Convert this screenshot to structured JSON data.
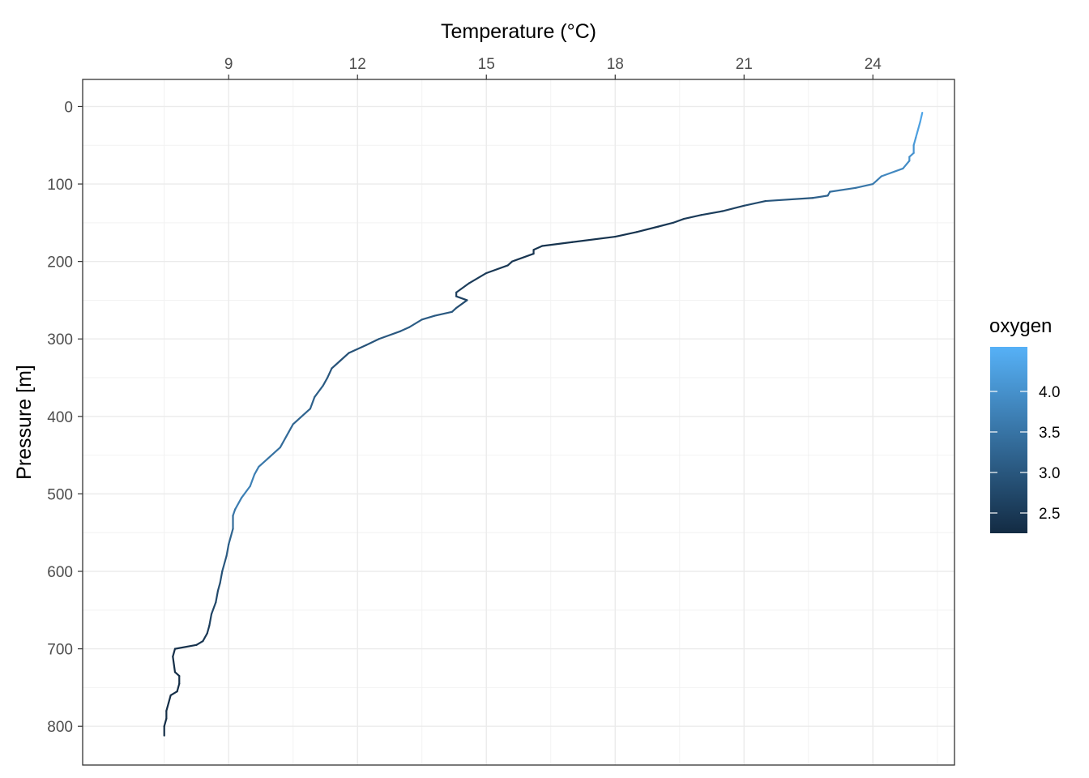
{
  "chart_data": {
    "type": "line",
    "title": "",
    "xlabel": "Temperature (°C)",
    "ylabel": "Pressure [m]",
    "x_axis_position": "top",
    "y_axis_reversed": true,
    "xlim": [
      5.6,
      25.9
    ],
    "ylim": [
      850,
      -35
    ],
    "x_ticks": [
      9,
      12,
      15,
      18,
      21,
      24
    ],
    "x_tick_labels": [
      "9",
      "12",
      "15",
      "18",
      "21",
      "24"
    ],
    "y_ticks": [
      0,
      100,
      200,
      300,
      400,
      500,
      600,
      700,
      800
    ],
    "y_tick_labels": [
      "0",
      "100",
      "200",
      "300",
      "400",
      "500",
      "600",
      "700",
      "800"
    ],
    "grid": true,
    "legend": {
      "title": "oxygen",
      "type": "colorbar",
      "position": "right",
      "range": [
        2.25,
        4.55
      ],
      "breaks": [
        2.5,
        3.0,
        3.5,
        4.0
      ],
      "labels": [
        "2.5",
        "3.0",
        "3.5",
        "4.0"
      ],
      "color_low": "#132b43",
      "color_high": "#56b1f7"
    },
    "series": [
      {
        "x": [
          25.15,
          25.1,
          25.0,
          24.95,
          24.95,
          24.85,
          24.85,
          24.7,
          24.2,
          24.1,
          24.0,
          23.6,
          23.0,
          22.95,
          22.6,
          21.5,
          21.0,
          20.5,
          20.0,
          19.6,
          19.35,
          19.0,
          18.5,
          18.0,
          17.0,
          16.3,
          16.1,
          16.1,
          15.6,
          15.5,
          15.0,
          14.6,
          14.3,
          14.3,
          14.55,
          14.3,
          14.2,
          13.8,
          13.5,
          13.2,
          13.0,
          12.5,
          12.2,
          11.8,
          11.6,
          11.4,
          11.3,
          11.2,
          11.0,
          10.9,
          10.5,
          10.4,
          10.2,
          9.9,
          9.7,
          9.6,
          9.5,
          9.3,
          9.15,
          9.1,
          9.1,
          9.0,
          8.95,
          8.85,
          8.8,
          8.75,
          8.7,
          8.6,
          8.55,
          8.5,
          8.4,
          8.25,
          7.75,
          7.7,
          7.75,
          7.85,
          7.85,
          7.8,
          7.65,
          7.6,
          7.55,
          7.55,
          7.5,
          7.5
        ],
        "y": [
          8,
          20,
          40,
          50,
          60,
          65,
          70,
          80,
          90,
          95,
          100,
          105,
          110,
          115,
          118,
          122,
          128,
          135,
          140,
          145,
          150,
          155,
          162,
          168,
          175,
          180,
          185,
          190,
          200,
          205,
          215,
          228,
          240,
          245,
          250,
          260,
          265,
          270,
          275,
          285,
          290,
          300,
          308,
          318,
          328,
          338,
          350,
          360,
          375,
          390,
          410,
          420,
          440,
          455,
          465,
          475,
          490,
          505,
          520,
          528,
          545,
          565,
          580,
          600,
          615,
          625,
          640,
          655,
          670,
          680,
          690,
          695,
          700,
          710,
          730,
          735,
          745,
          755,
          760,
          770,
          780,
          790,
          800,
          812
        ],
        "colors": [
          4.4,
          4.3,
          4.2,
          4.1,
          4.05,
          4.0,
          3.95,
          3.9,
          3.8,
          3.7,
          3.6,
          3.5,
          3.4,
          3.3,
          3.1,
          2.9,
          2.7,
          2.6,
          2.55,
          2.5,
          2.5,
          2.45,
          2.4,
          2.4,
          2.4,
          2.4,
          2.4,
          2.4,
          2.45,
          2.45,
          2.5,
          2.55,
          2.6,
          2.6,
          2.7,
          2.9,
          3.0,
          3.05,
          3.1,
          3.1,
          3.05,
          3.0,
          2.95,
          2.9,
          2.9,
          2.95,
          3.0,
          3.1,
          3.15,
          3.2,
          3.25,
          3.3,
          3.4,
          3.5,
          3.6,
          3.7,
          3.75,
          3.7,
          3.6,
          3.45,
          3.3,
          3.15,
          3.05,
          2.95,
          2.85,
          2.8,
          2.75,
          2.7,
          2.6,
          2.5,
          2.45,
          2.4,
          2.35,
          2.3,
          2.3,
          2.3,
          2.3,
          2.3,
          2.3,
          2.3,
          2.3,
          2.3,
          2.3,
          2.3
        ]
      }
    ]
  }
}
